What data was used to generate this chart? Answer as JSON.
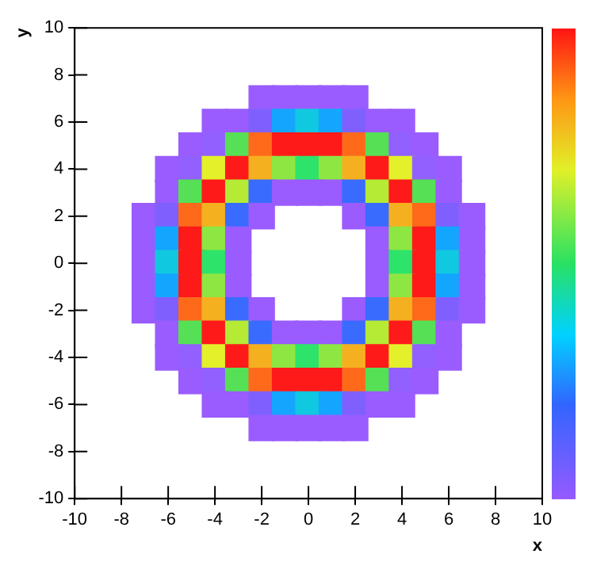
{
  "chart_data": {
    "type": "scatter",
    "xlabel": "x",
    "ylabel": "y",
    "marker": "square",
    "legend": false,
    "grid": false,
    "xlim": [
      -10,
      10
    ],
    "ylim": [
      -10,
      10
    ],
    "xticks": [
      -10,
      -8,
      -6,
      -4,
      -2,
      0,
      2,
      4,
      6,
      8,
      10
    ],
    "yticks": [
      -10,
      -8,
      -6,
      -4,
      -2,
      0,
      2,
      4,
      6,
      8,
      10
    ],
    "x": [
      -2,
      -1,
      0,
      1,
      2,
      -4,
      -3,
      -2,
      -1,
      0,
      1,
      2,
      3,
      4,
      -5,
      -4,
      -3,
      -2,
      -1,
      0,
      1,
      2,
      3,
      4,
      5,
      -6,
      -5,
      -4,
      -3,
      -2,
      -1,
      0,
      1,
      2,
      3,
      4,
      5,
      6,
      -6,
      -5,
      -4,
      -3,
      -2,
      -1,
      0,
      1,
      2,
      3,
      4,
      5,
      6,
      -7,
      -6,
      -5,
      -4,
      -3,
      -2,
      2,
      3,
      4,
      5,
      6,
      7,
      -7,
      -6,
      -5,
      -4,
      -3,
      3,
      4,
      5,
      6,
      7,
      -7,
      -6,
      -5,
      -4,
      -3,
      3,
      4,
      5,
      6,
      7,
      -7,
      -6,
      -5,
      -4,
      -3,
      3,
      4,
      5,
      6,
      7,
      -7,
      -6,
      -5,
      -4,
      -3,
      -2,
      2,
      3,
      4,
      5,
      6,
      7,
      -6,
      -5,
      -4,
      -3,
      -2,
      -1,
      0,
      1,
      2,
      3,
      4,
      5,
      6,
      -6,
      -5,
      -4,
      -3,
      -2,
      -1,
      0,
      1,
      2,
      3,
      4,
      5,
      6,
      -5,
      -4,
      -3,
      -2,
      -1,
      0,
      1,
      2,
      3,
      4,
      5,
      -4,
      -3,
      -2,
      -1,
      0,
      1,
      2,
      3,
      4,
      -2,
      -1,
      0,
      1,
      2
    ],
    "values": [
      7,
      7,
      7,
      7,
      7,
      6,
      6,
      6,
      6,
      6,
      6,
      6,
      6,
      6,
      5,
      5,
      5,
      5,
      5,
      5,
      5,
      5,
      5,
      5,
      5,
      4,
      4,
      4,
      4,
      4,
      4,
      4,
      4,
      4,
      4,
      4,
      4,
      4,
      3,
      3,
      3,
      3,
      3,
      3,
      3,
      3,
      3,
      3,
      3,
      3,
      3,
      2,
      2,
      2,
      2,
      2,
      2,
      2,
      2,
      2,
      2,
      2,
      2,
      1,
      1,
      1,
      1,
      1,
      1,
      1,
      1,
      1,
      1,
      0,
      0,
      0,
      0,
      0,
      0,
      0,
      0,
      0,
      0,
      -1,
      -1,
      -1,
      -1,
      -1,
      -1,
      -1,
      -1,
      -1,
      -1,
      -2,
      -2,
      -2,
      -2,
      -2,
      -2,
      -2,
      -2,
      -2,
      -2,
      -2,
      -2,
      -3,
      -3,
      -3,
      -3,
      -3,
      -3,
      -3,
      -3,
      -3,
      -3,
      -3,
      -3,
      -3,
      -4,
      -4,
      -4,
      -4,
      -4,
      -4,
      -4,
      -4,
      -4,
      -4,
      -4,
      -4,
      -4,
      -5,
      -5,
      -5,
      -5,
      -5,
      -5,
      -5,
      -5,
      -5,
      -5,
      -5,
      -6,
      -6,
      -6,
      -6,
      -6,
      -6,
      -6,
      -6,
      -6,
      -7,
      -7,
      -7,
      -7,
      -7
    ],
    "colors": [
      "#9a5cff",
      "#9a5cff",
      "#9a5cff",
      "#9a5cff",
      "#9a5cff",
      "#9a5cff",
      "#9a5cff",
      "#7f60ff",
      "#14a6ff",
      "#10c8e0",
      "#14a6ff",
      "#7f60ff",
      "#9a5cff",
      "#9a5cff",
      "#9a5cff",
      "#9160ff",
      "#55e055",
      "#ff6a1a",
      "#ff1a1a",
      "#ff1a1a",
      "#ff1a1a",
      "#ff6a1a",
      "#55e055",
      "#9160ff",
      "#9a5cff",
      "#9a5cff",
      "#9160ff",
      "#e3f02a",
      "#ff1a1a",
      "#f5b020",
      "#8ee642",
      "#2ee36a",
      "#8ee642",
      "#f5b020",
      "#ff1a1a",
      "#e3f02a",
      "#9160ff",
      "#9a5cff",
      "#9a5cff",
      "#55e055",
      "#ff1a1a",
      "#b5ea35",
      "#3a6bff",
      "#9a5cff",
      "#9a5cff",
      "#9a5cff",
      "#3a6bff",
      "#b5ea35",
      "#ff1a1a",
      "#55e055",
      "#9a5cff",
      "#9a5cff",
      "#7f60ff",
      "#ff6a1a",
      "#f5b020",
      "#3a6bff",
      "#9a5cff",
      "#9a5cff",
      "#3a6bff",
      "#f5b020",
      "#ff6a1a",
      "#7f60ff",
      "#9a5cff",
      "#9a5cff",
      "#14a6ff",
      "#ff1a1a",
      "#8ee642",
      "#9a5cff",
      "#9a5cff",
      "#8ee642",
      "#ff1a1a",
      "#14a6ff",
      "#9a5cff",
      "#9a5cff",
      "#10c8e0",
      "#ff1a1a",
      "#2ee36a",
      "#9a5cff",
      "#9a5cff",
      "#2ee36a",
      "#ff1a1a",
      "#10c8e0",
      "#9a5cff",
      "#9a5cff",
      "#14a6ff",
      "#ff1a1a",
      "#8ee642",
      "#9a5cff",
      "#9a5cff",
      "#8ee642",
      "#ff1a1a",
      "#14a6ff",
      "#9a5cff",
      "#9a5cff",
      "#7f60ff",
      "#ff6a1a",
      "#f5b020",
      "#3a6bff",
      "#9a5cff",
      "#9a5cff",
      "#3a6bff",
      "#f5b020",
      "#ff6a1a",
      "#7f60ff",
      "#9a5cff",
      "#9a5cff",
      "#55e055",
      "#ff1a1a",
      "#b5ea35",
      "#3a6bff",
      "#9a5cff",
      "#9a5cff",
      "#9a5cff",
      "#3a6bff",
      "#b5ea35",
      "#ff1a1a",
      "#55e055",
      "#9a5cff",
      "#9a5cff",
      "#9160ff",
      "#e3f02a",
      "#ff1a1a",
      "#f5b020",
      "#8ee642",
      "#2ee36a",
      "#8ee642",
      "#f5b020",
      "#ff1a1a",
      "#e3f02a",
      "#9160ff",
      "#9a5cff",
      "#9a5cff",
      "#9160ff",
      "#55e055",
      "#ff6a1a",
      "#ff1a1a",
      "#ff1a1a",
      "#ff1a1a",
      "#ff6a1a",
      "#55e055",
      "#9160ff",
      "#9a5cff",
      "#9a5cff",
      "#9a5cff",
      "#7f60ff",
      "#14a6ff",
      "#10c8e0",
      "#14a6ff",
      "#7f60ff",
      "#9a5cff",
      "#9a5cff",
      "#9a5cff",
      "#9a5cff",
      "#9a5cff",
      "#9a5cff",
      "#9a5cff"
    ]
  }
}
